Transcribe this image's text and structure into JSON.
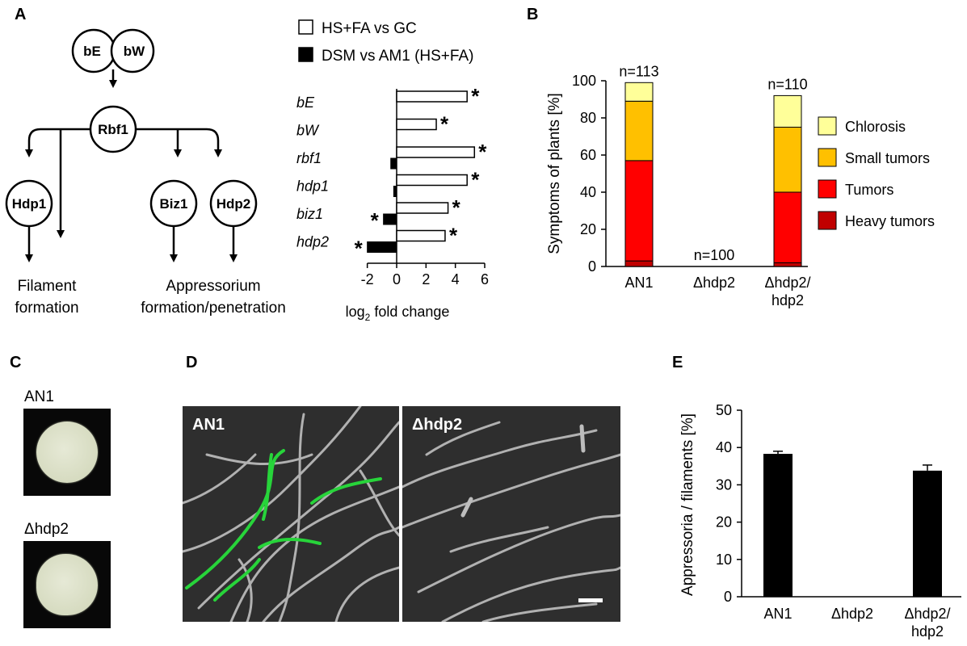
{
  "panels": {
    "A": "A",
    "B": "B",
    "C": "C",
    "D": "D",
    "E": "E"
  },
  "diagram": {
    "nodes": {
      "bE": "bE",
      "bW": "bW",
      "rbf1": "Rbf1",
      "hdp1": "Hdp1",
      "biz1": "Biz1",
      "hdp2": "Hdp2"
    },
    "outcomes": {
      "filament_1": "Filament",
      "filament_2": "formation",
      "appress_1": "Appressorium",
      "appress_2": "formation/penetration"
    }
  },
  "fold_chart": {
    "legend": [
      "HS+FA vs GC",
      "DSM vs AM1 (HS+FA)"
    ],
    "xlabel_main": "log",
    "xlabel_sub": "2",
    "xlabel_rest": " fold change",
    "star": "*"
  },
  "chart_data": [
    {
      "type": "bar",
      "orientation": "horizontal",
      "categories": [
        "bE",
        "bW",
        "rbf1",
        "hdp1",
        "biz1",
        "hdp2"
      ],
      "series": [
        {
          "name": "HS+FA vs GC",
          "values": [
            4.8,
            2.7,
            5.3,
            4.8,
            3.5,
            3.3
          ]
        },
        {
          "name": "DSM vs AM1 (HS+FA)",
          "values": [
            0,
            0,
            -0.4,
            -0.2,
            -0.9,
            -2.0
          ]
        }
      ],
      "significant": [
        true,
        true,
        true,
        true,
        true,
        true
      ],
      "xlim": [
        -2,
        6
      ],
      "xticks": [
        -2,
        0,
        2,
        4,
        6
      ],
      "xlabel": "log2 fold change",
      "ylabel": ""
    },
    {
      "type": "bar",
      "stacked": true,
      "categories": [
        "AN1",
        "Δhdp2",
        "Δhdp2/\nhdp2"
      ],
      "category_lines": [
        [
          "AN1"
        ],
        [
          "Δhdp2"
        ],
        [
          "Δhdp2/",
          "hdp2"
        ]
      ],
      "series": [
        {
          "name": "Heavy tumors",
          "color": "#c00000",
          "values": [
            3,
            0,
            2
          ]
        },
        {
          "name": "Tumors",
          "color": "#ff0000",
          "values": [
            54,
            0,
            38
          ]
        },
        {
          "name": "Small tumors",
          "color": "#ffc000",
          "values": [
            32,
            0,
            35
          ]
        },
        {
          "name": "Chlorosis",
          "color": "#ffff99",
          "values": [
            10,
            0,
            17
          ]
        }
      ],
      "annotations": [
        "n=113",
        "n=100",
        "n=110"
      ],
      "ylabel": "Symptoms of plants [%]",
      "ylim": [
        0,
        100
      ],
      "yticks": [
        0,
        20,
        40,
        60,
        80,
        100
      ],
      "legend_position": "right"
    },
    {
      "type": "bar",
      "categories": [
        "AN1",
        "Δhdp2",
        "Δhdp2/\nhdp2"
      ],
      "category_lines": [
        [
          "AN1"
        ],
        [
          "Δhdp2"
        ],
        [
          "Δhdp2/",
          "hdp2"
        ]
      ],
      "values": [
        38.3,
        0,
        33.8
      ],
      "errors": [
        0.7,
        0,
        1.5
      ],
      "ylabel": "Appressoria / filaments [%]",
      "ylim": [
        0,
        50
      ],
      "yticks": [
        0,
        10,
        20,
        30,
        40,
        50
      ]
    }
  ],
  "colonies": [
    {
      "label": "AN1"
    },
    {
      "label": "Δhdp2"
    }
  ],
  "micrographs": [
    {
      "label": "AN1"
    },
    {
      "label": "Δhdp2"
    }
  ]
}
